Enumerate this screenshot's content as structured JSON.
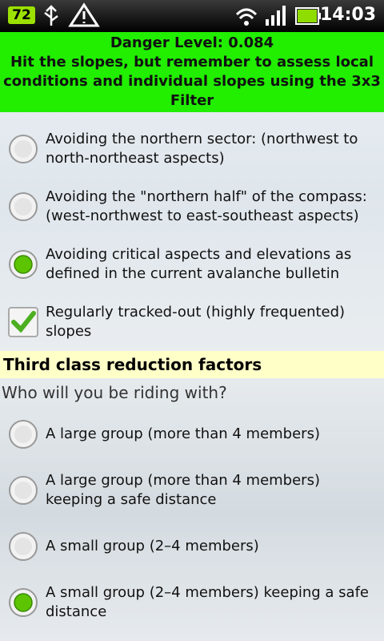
{
  "status": {
    "battery": "72",
    "time": "14:03"
  },
  "header": {
    "title": "Danger Level: 0.084",
    "message": [
      "Hit the slopes, but remember to assess local",
      "conditions and individual slopes using the 3x3",
      "Filter"
    ]
  },
  "groups": [
    {
      "options": [
        {
          "control": "radio",
          "checked": false,
          "lines": [
            "Avoiding the northern sector: (northwest to",
            "north-northeast aspects)"
          ]
        },
        {
          "control": "radio",
          "checked": false,
          "lines": [
            "Avoiding the \"northern half\" of the compass:",
            "(west-northwest to east-southeast aspects)"
          ]
        },
        {
          "control": "radio",
          "checked": true,
          "lines": [
            "Avoiding critical aspects and elevations as",
            "defined in the current avalanche bulletin"
          ]
        },
        {
          "control": "checkbox",
          "checked": true,
          "lines": [
            "Regularly tracked-out (highly frequented)",
            "slopes"
          ]
        }
      ]
    },
    {
      "section": "Third class reduction factors",
      "question": "Who will you be riding with?",
      "options": [
        {
          "control": "radio",
          "checked": false,
          "lines": [
            "A large group (more than 4 members)"
          ]
        },
        {
          "control": "radio",
          "checked": false,
          "lines": [
            "A large group (more than 4 members)",
            "keeping a safe distance"
          ]
        },
        {
          "control": "radio",
          "checked": false,
          "lines": [
            "A small group (2–4 members)"
          ]
        },
        {
          "control": "radio",
          "checked": true,
          "lines": [
            "A small group (2–4 members) keeping a safe",
            "distance"
          ]
        }
      ]
    }
  ]
}
